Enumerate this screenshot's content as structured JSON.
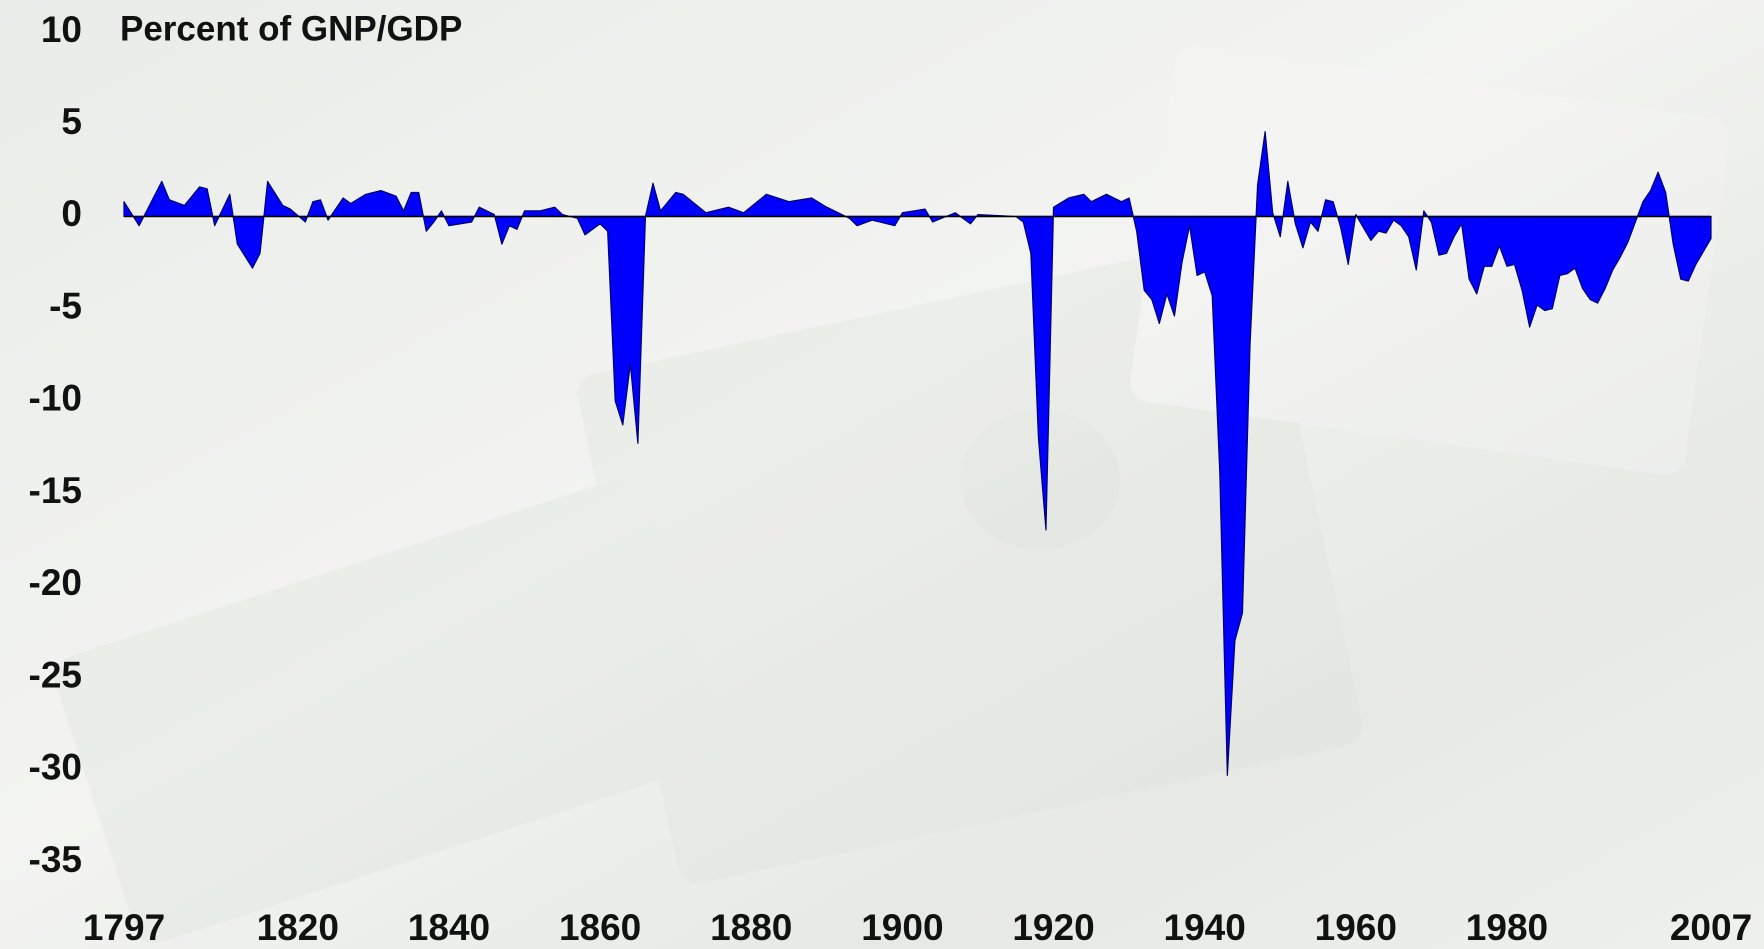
{
  "chart_data": {
    "type": "area",
    "title": "Percent of GNP/GDP",
    "x": [
      1797,
      1799,
      1802,
      1803,
      1805,
      1807,
      1808,
      1809,
      1811,
      1812,
      1814,
      1815,
      1816,
      1818,
      1819,
      1821,
      1822,
      1823,
      1824,
      1826,
      1827,
      1829,
      1831,
      1833,
      1834,
      1835,
      1836,
      1837,
      1838,
      1839,
      1840,
      1843,
      1844,
      1846,
      1847,
      1848,
      1849,
      1850,
      1852,
      1854,
      1855,
      1857,
      1858,
      1860,
      1861,
      1862,
      1863,
      1864,
      1865,
      1866,
      1867,
      1868,
      1870,
      1871,
      1874,
      1877,
      1879,
      1882,
      1885,
      1888,
      1890,
      1893,
      1894,
      1896,
      1899,
      1900,
      1903,
      1904,
      1907,
      1909,
      1910,
      1915,
      1916,
      1917,
      1918,
      1919,
      1920,
      1922,
      1924,
      1925,
      1927,
      1929,
      1930,
      1931,
      1932,
      1933,
      1934,
      1935,
      1936,
      1937,
      1938,
      1939,
      1940,
      1941,
      1942,
      1943,
      1944,
      1945,
      1946,
      1947,
      1948,
      1949,
      1950,
      1951,
      1952,
      1953,
      1954,
      1955,
      1956,
      1957,
      1958,
      1959,
      1960,
      1961,
      1962,
      1963,
      1964,
      1965,
      1966,
      1967,
      1968,
      1969,
      1970,
      1971,
      1972,
      1973,
      1974,
      1975,
      1976,
      1977,
      1978,
      1979,
      1980,
      1981,
      1982,
      1983,
      1984,
      1985,
      1986,
      1987,
      1988,
      1989,
      1990,
      1991,
      1992,
      1993,
      1994,
      1995,
      1996,
      1997,
      1998,
      1999,
      2000,
      2001,
      2002,
      2003,
      2004,
      2005,
      2006,
      2007
    ],
    "values": [
      0.8,
      -0.5,
      1.9,
      0.9,
      0.6,
      1.6,
      1.5,
      -0.5,
      1.2,
      -1.5,
      -2.8,
      -2,
      1.9,
      0.6,
      0.4,
      -0.3,
      0.8,
      0.9,
      -0.2,
      1.0,
      0.7,
      1.2,
      1.4,
      1.1,
      0.3,
      1.3,
      1.3,
      -0.8,
      -0.3,
      0.3,
      -0.5,
      -0.3,
      0.5,
      0.1,
      -1.5,
      -0.5,
      -0.7,
      0.3,
      0.3,
      0.5,
      0.1,
      -0.1,
      -1,
      -0.4,
      -0.8,
      -10,
      -11.3,
      -8,
      -12.3,
      0,
      1.8,
      0.3,
      1.3,
      1.2,
      0.2,
      0.5,
      0.2,
      1.2,
      0.8,
      1.0,
      0.5,
      -0.1,
      -0.5,
      -0.2,
      -0.5,
      0.2,
      0.4,
      -0.3,
      0.2,
      -0.4,
      0.1,
      0,
      -0.3,
      -2,
      -12,
      -17,
      0.5,
      1.0,
      1.2,
      0.8,
      1.2,
      0.8,
      1.0,
      -0.8,
      -4.0,
      -4.5,
      -5.8,
      -4.2,
      -5.4,
      -2.5,
      -0.5,
      -3.2,
      -3.0,
      -4.3,
      -13.9,
      -30.3,
      -23,
      -21.5,
      -7,
      1.7,
      4.6,
      0.2,
      -1.1,
      1.9,
      -0.4,
      -1.7,
      -0.3,
      -0.8,
      0.9,
      0.8,
      -0.6,
      -2.6,
      0.1,
      -0.6,
      -1.3,
      -0.8,
      -0.9,
      -0.2,
      -0.5,
      -1.1,
      -2.9,
      0.3,
      -0.3,
      -2.1,
      -2.0,
      -1.1,
      -0.4,
      -3.4,
      -4.2,
      -2.7,
      -2.7,
      -1.6,
      -2.7,
      -2.6,
      -4.0,
      -6.0,
      -4.8,
      -5.1,
      -5.0,
      -3.2,
      -3.1,
      -2.8,
      -3.9,
      -4.5,
      -4.7,
      -3.9,
      -2.9,
      -2.2,
      -1.4,
      -0.3,
      0.8,
      1.4,
      2.4,
      1.3,
      -1.5,
      -3.4,
      -3.5,
      -2.6,
      -1.9,
      -1.2
    ],
    "color": "#0000ff",
    "xlim": [
      1797,
      2007
    ],
    "xticks": [
      1797,
      1820,
      1840,
      1860,
      1880,
      1900,
      1920,
      1940,
      1960,
      1980,
      2007
    ],
    "ylim": [
      -35,
      10
    ],
    "yticks": [
      10,
      5,
      0,
      -5,
      -10,
      -15,
      -20,
      -25,
      -30,
      -35
    ],
    "grid": false
  }
}
